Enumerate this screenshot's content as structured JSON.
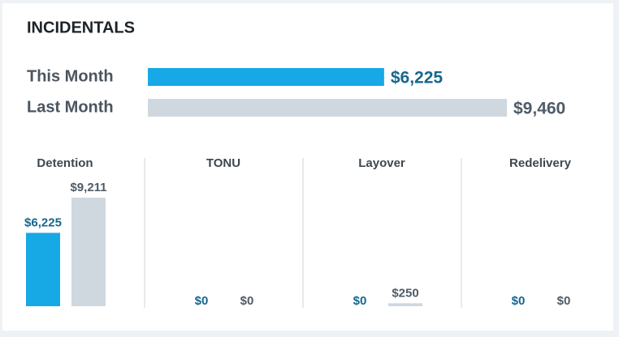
{
  "chart_data": [
    {
      "type": "bar",
      "orientation": "horizontal",
      "title": "INCIDENTALS",
      "categories": [
        "This Month",
        "Last Month"
      ],
      "values": [
        6225,
        9460
      ],
      "value_labels": [
        "$6,225",
        "$9,460"
      ],
      "colors": [
        "#17a8e6",
        "#cfd8df"
      ]
    },
    {
      "type": "bar",
      "title": "Detention",
      "values": [
        6225,
        9211
      ],
      "value_labels": [
        "$6,225",
        "$9,211"
      ],
      "colors": [
        "#17a8e6",
        "#cfd8df"
      ]
    },
    {
      "type": "bar",
      "title": "TONU",
      "values": [
        0,
        0
      ],
      "value_labels": [
        "$0",
        "$0"
      ],
      "colors": [
        "#17a8e6",
        "#cfd8df"
      ]
    },
    {
      "type": "bar",
      "title": "Layover",
      "values": [
        0,
        250
      ],
      "value_labels": [
        "$0",
        "$250"
      ],
      "colors": [
        "#17a8e6",
        "#cfd8df"
      ]
    },
    {
      "type": "bar",
      "title": "Redelivery",
      "values": [
        0,
        0
      ],
      "value_labels": [
        "$0",
        "$0"
      ],
      "colors": [
        "#17a8e6",
        "#cfd8df"
      ]
    }
  ]
}
